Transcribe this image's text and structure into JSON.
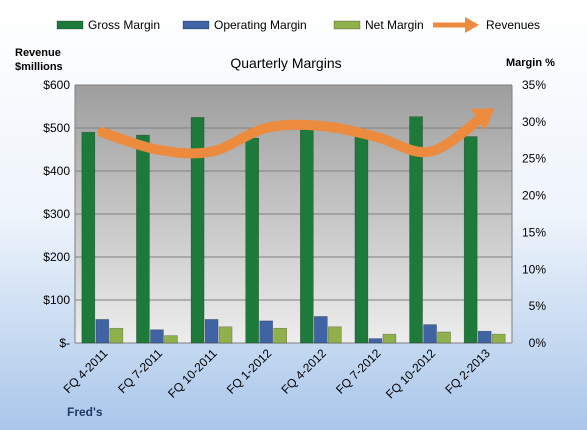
{
  "chart_data": {
    "type": "bar",
    "title": "Quarterly Margins",
    "categories": [
      "FQ 4-2011",
      "FQ 7-2011",
      "FQ 10-2011",
      "FQ 1-2012",
      "FQ 4-2012",
      "FQ 7-2012",
      "FQ 10-2012",
      "FQ 2-2013"
    ],
    "series": [
      {
        "name": "Gross Margin",
        "axis": "right",
        "color": "#1e7a3a",
        "values": [
          28.6,
          28.2,
          30.6,
          27.8,
          29.5,
          28.2,
          30.7,
          28.0
        ]
      },
      {
        "name": "Operating Margin",
        "axis": "right",
        "color": "#3f63a3",
        "values": [
          3.2,
          1.8,
          3.2,
          3.0,
          3.6,
          0.6,
          2.5,
          1.6
        ]
      },
      {
        "name": "Net Margin",
        "axis": "right",
        "color": "#8fb04a",
        "values": [
          2.0,
          1.0,
          2.2,
          2.0,
          2.2,
          1.2,
          1.5,
          1.2
        ]
      },
      {
        "name": "Revenues",
        "type": "line",
        "axis": "left",
        "color": "#ec8a3d",
        "values": [
          490,
          450,
          445,
          500,
          505,
          480,
          445,
          530
        ]
      }
    ],
    "left_axis": {
      "title_line1": "Revenue",
      "title_line2": "$millions",
      "min": 0,
      "max": 600,
      "ticks": [
        0,
        100,
        200,
        300,
        400,
        500,
        600
      ],
      "tick_labels": [
        "$-",
        "$100",
        "$200",
        "$300",
        "$400",
        "$500",
        "$600"
      ]
    },
    "right_axis": {
      "title": "Margin %",
      "min": 0,
      "max": 35,
      "ticks": [
        0,
        5,
        10,
        15,
        20,
        25,
        30,
        35
      ],
      "tick_labels": [
        "0%",
        "5%",
        "10%",
        "15%",
        "20%",
        "25%",
        "30%",
        "35%"
      ]
    },
    "legend": {
      "placement": "top",
      "entries": [
        "Gross Margin",
        "Operating Margin",
        "Net Margin",
        "Revenues"
      ]
    },
    "grid": true,
    "credit": "Fred's"
  }
}
